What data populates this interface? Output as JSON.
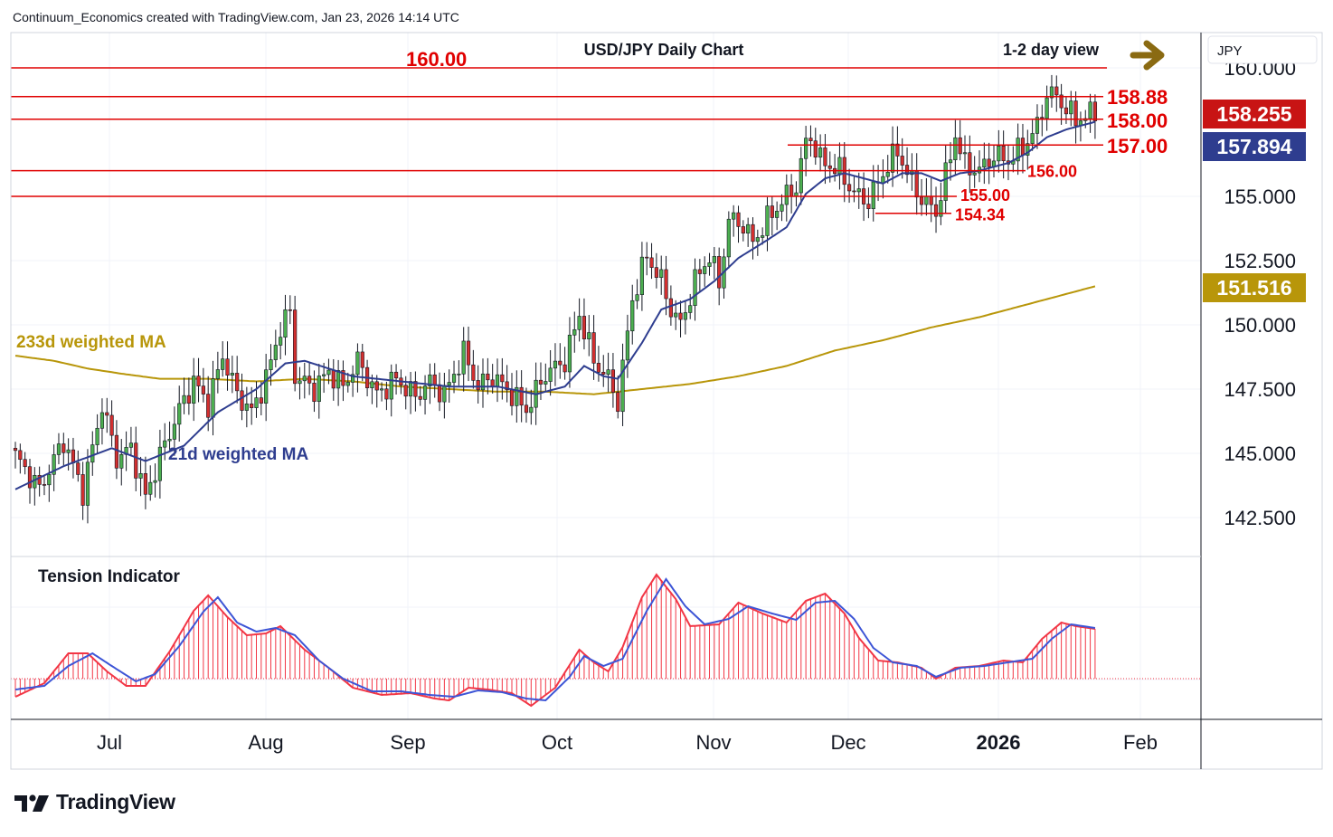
{
  "header": {
    "attribution": "Continuum_Economics created with TradingView.com, Jan 23, 2026 14:14 UTC"
  },
  "brand": {
    "name": "TradingView"
  },
  "chart_data": {
    "type": "candlestick",
    "title": "USD/JPY Daily Chart",
    "view_label": "1-2 day view",
    "view_arrow": "right-arrow-icon",
    "currency_label": "JPY",
    "ylim": [
      141.2,
      161.3
    ],
    "y_ticks": [
      "142.500",
      "145.000",
      "147.500",
      "150.000",
      "152.500",
      "155.000",
      "160.000"
    ],
    "x_labels": [
      {
        "label": "Jul",
        "bold": false
      },
      {
        "label": "Aug",
        "bold": false
      },
      {
        "label": "Sep",
        "bold": false
      },
      {
        "label": "Oct",
        "bold": false
      },
      {
        "label": "Nov",
        "bold": false
      },
      {
        "label": "Dec",
        "bold": false
      },
      {
        "label": "2026",
        "bold": true
      },
      {
        "label": "Feb",
        "bold": false
      }
    ],
    "colors": {
      "up": "#4caf50",
      "down": "#d32f2f",
      "level": "#e00000",
      "ma21": "#2e3d8f",
      "ma233": "#b8960a",
      "tension_bars": "#f23645",
      "tension_signal": "#3d55d6",
      "price_badge": "#c81414",
      "ma21_badge": "#2e3d8f",
      "ma233_badge": "#b8960a",
      "arrow": "#8a6a12"
    },
    "levels": [
      {
        "label": "160.00",
        "value": 160.0
      },
      {
        "label": "158.88",
        "value": 158.88
      },
      {
        "label": "158.00",
        "value": 158.0
      },
      {
        "label": "157.00",
        "value": 157.0
      },
      {
        "label": "156.00",
        "value": 156.0
      },
      {
        "label": "155.00",
        "value": 155.0
      },
      {
        "label": "154.34",
        "value": 154.34
      }
    ],
    "price_badges": [
      {
        "label": "158.255",
        "value": 158.255,
        "role": "last"
      },
      {
        "label": "157.894",
        "value": 157.894,
        "role": "ma21"
      },
      {
        "label": "151.516",
        "value": 151.516,
        "role": "ma233"
      }
    ],
    "ma_labels": {
      "ma233": "233d weighted MA",
      "ma21": "21d weighted MA"
    },
    "ohlc_close_path": [
      [
        0,
        144.9
      ],
      [
        5,
        143.6
      ],
      [
        10,
        145.5
      ],
      [
        14,
        143.5
      ],
      [
        18,
        146.9
      ],
      [
        21,
        144.8
      ],
      [
        24,
        145.2
      ],
      [
        27,
        143.3
      ],
      [
        30,
        144.9
      ],
      [
        34,
        146.7
      ],
      [
        37,
        147.8
      ],
      [
        40,
        146.9
      ],
      [
        43,
        148.8
      ],
      [
        46,
        147.3
      ],
      [
        49,
        146.6
      ],
      [
        52,
        147.9
      ],
      [
        55,
        149.9
      ],
      [
        57,
        150.5
      ],
      [
        58,
        148.0
      ],
      [
        62,
        147.5
      ],
      [
        65,
        148.2
      ],
      [
        68,
        147.6
      ],
      [
        71,
        148.6
      ],
      [
        75,
        147.3
      ],
      [
        79,
        147.9
      ],
      [
        83,
        147.2
      ],
      [
        86,
        147.8
      ],
      [
        89,
        147.3
      ],
      [
        93,
        148.9
      ],
      [
        96,
        147.6
      ],
      [
        99,
        148.0
      ],
      [
        103,
        147.3
      ],
      [
        106,
        146.7
      ],
      [
        110,
        148.1
      ],
      [
        114,
        148.6
      ],
      [
        117,
        150.4
      ],
      [
        120,
        148.6
      ],
      [
        123,
        147.9
      ],
      [
        125,
        147.0
      ],
      [
        128,
        151.0
      ],
      [
        131,
        152.7
      ],
      [
        134,
        151.7
      ],
      [
        136,
        150.6
      ],
      [
        138,
        150.0
      ],
      [
        141,
        151.7
      ],
      [
        144,
        152.7
      ],
      [
        146,
        151.6
      ],
      [
        148,
        154.1
      ],
      [
        151,
        153.9
      ],
      [
        153,
        153.2
      ],
      [
        156,
        154.1
      ],
      [
        159,
        154.8
      ],
      [
        162,
        155.4
      ],
      [
        164,
        157.1
      ],
      [
        165,
        157.3
      ],
      [
        167,
        156.4
      ],
      [
        169,
        156.2
      ],
      [
        171,
        156.0
      ],
      [
        174,
        155.1
      ],
      [
        177,
        154.8
      ],
      [
        180,
        155.9
      ],
      [
        183,
        156.8
      ],
      [
        185,
        155.9
      ],
      [
        188,
        154.9
      ],
      [
        191,
        154.4
      ],
      [
        193,
        155.8
      ],
      [
        195,
        157.4
      ],
      [
        197,
        156.2
      ],
      [
        200,
        156.0
      ],
      [
        203,
        156.6
      ],
      [
        206,
        156.4
      ],
      [
        209,
        156.9
      ],
      [
        212,
        157.7
      ],
      [
        214,
        159.0
      ],
      [
        216,
        158.9
      ],
      [
        218,
        158.4
      ],
      [
        220,
        158.0
      ],
      [
        222,
        158.1
      ],
      [
        224,
        158.3
      ]
    ],
    "ma21_path": [
      [
        0,
        143.6
      ],
      [
        10,
        144.5
      ],
      [
        20,
        145.2
      ],
      [
        27,
        144.7
      ],
      [
        35,
        145.3
      ],
      [
        42,
        146.6
      ],
      [
        50,
        147.5
      ],
      [
        56,
        148.5
      ],
      [
        60,
        148.6
      ],
      [
        70,
        148.0
      ],
      [
        80,
        147.8
      ],
      [
        90,
        147.6
      ],
      [
        100,
        147.6
      ],
      [
        108,
        147.3
      ],
      [
        114,
        147.6
      ],
      [
        118,
        148.4
      ],
      [
        122,
        148.0
      ],
      [
        125,
        147.9
      ],
      [
        130,
        149.3
      ],
      [
        134,
        150.6
      ],
      [
        140,
        151.0
      ],
      [
        145,
        151.7
      ],
      [
        150,
        152.6
      ],
      [
        156,
        153.3
      ],
      [
        160,
        153.8
      ],
      [
        164,
        155.1
      ],
      [
        168,
        155.7
      ],
      [
        172,
        155.9
      ],
      [
        176,
        155.7
      ],
      [
        180,
        155.5
      ],
      [
        184,
        155.9
      ],
      [
        188,
        155.9
      ],
      [
        192,
        155.6
      ],
      [
        196,
        155.9
      ],
      [
        200,
        156.0
      ],
      [
        206,
        156.3
      ],
      [
        210,
        156.7
      ],
      [
        214,
        157.3
      ],
      [
        218,
        157.6
      ],
      [
        224,
        157.9
      ]
    ],
    "ma233_path": [
      [
        0,
        148.8
      ],
      [
        8,
        148.6
      ],
      [
        15,
        148.3
      ],
      [
        22,
        148.1
      ],
      [
        30,
        147.9
      ],
      [
        40,
        147.9
      ],
      [
        50,
        147.8
      ],
      [
        60,
        147.9
      ],
      [
        70,
        147.8
      ],
      [
        80,
        147.6
      ],
      [
        90,
        147.5
      ],
      [
        100,
        147.4
      ],
      [
        110,
        147.4
      ],
      [
        120,
        147.3
      ],
      [
        130,
        147.5
      ],
      [
        140,
        147.7
      ],
      [
        150,
        148.0
      ],
      [
        160,
        148.4
      ],
      [
        170,
        149.0
      ],
      [
        180,
        149.4
      ],
      [
        190,
        149.9
      ],
      [
        200,
        150.3
      ],
      [
        210,
        150.8
      ],
      [
        224,
        151.5
      ]
    ],
    "tension_indicator": {
      "title": "Tension Indicator",
      "ylim": [
        -0.6,
        1.2
      ],
      "bars_path": [
        [
          0,
          -0.2
        ],
        [
          6,
          -0.05
        ],
        [
          11,
          0.28
        ],
        [
          15,
          0.28
        ],
        [
          19,
          0.08
        ],
        [
          23,
          -0.08
        ],
        [
          27,
          -0.08
        ],
        [
          32,
          0.3
        ],
        [
          37,
          0.75
        ],
        [
          40,
          0.92
        ],
        [
          44,
          0.68
        ],
        [
          48,
          0.48
        ],
        [
          52,
          0.5
        ],
        [
          55,
          0.58
        ],
        [
          60,
          0.32
        ],
        [
          65,
          0.12
        ],
        [
          70,
          -0.1
        ],
        [
          76,
          -0.18
        ],
        [
          82,
          -0.16
        ],
        [
          87,
          -0.22
        ],
        [
          90,
          -0.24
        ],
        [
          94,
          -0.1
        ],
        [
          98,
          -0.12
        ],
        [
          103,
          -0.16
        ],
        [
          107,
          -0.3
        ],
        [
          112,
          -0.1
        ],
        [
          117,
          0.32
        ],
        [
          120,
          0.18
        ],
        [
          123,
          0.08
        ],
        [
          126,
          0.35
        ],
        [
          130,
          0.9
        ],
        [
          133,
          1.15
        ],
        [
          137,
          0.88
        ],
        [
          140,
          0.58
        ],
        [
          146,
          0.6
        ],
        [
          150,
          0.84
        ],
        [
          155,
          0.72
        ],
        [
          160,
          0.62
        ],
        [
          164,
          0.86
        ],
        [
          168,
          0.94
        ],
        [
          172,
          0.72
        ],
        [
          175,
          0.45
        ],
        [
          179,
          0.2
        ],
        [
          183,
          0.18
        ],
        [
          188,
          0.12
        ],
        [
          191,
          0.0
        ],
        [
          195,
          0.12
        ],
        [
          200,
          0.14
        ],
        [
          205,
          0.2
        ],
        [
          209,
          0.18
        ],
        [
          213,
          0.44
        ],
        [
          217,
          0.62
        ],
        [
          220,
          0.58
        ],
        [
          224,
          0.55
        ]
      ],
      "signal_path": [
        [
          0,
          -0.12
        ],
        [
          6,
          -0.08
        ],
        [
          11,
          0.14
        ],
        [
          16,
          0.28
        ],
        [
          20,
          0.14
        ],
        [
          25,
          -0.03
        ],
        [
          29,
          0.05
        ],
        [
          34,
          0.36
        ],
        [
          39,
          0.74
        ],
        [
          42,
          0.9
        ],
        [
          46,
          0.62
        ],
        [
          50,
          0.52
        ],
        [
          54,
          0.56
        ],
        [
          58,
          0.48
        ],
        [
          63,
          0.2
        ],
        [
          68,
          0.0
        ],
        [
          74,
          -0.14
        ],
        [
          80,
          -0.14
        ],
        [
          86,
          -0.18
        ],
        [
          91,
          -0.2
        ],
        [
          96,
          -0.13
        ],
        [
          101,
          -0.15
        ],
        [
          106,
          -0.22
        ],
        [
          110,
          -0.24
        ],
        [
          115,
          0.02
        ],
        [
          118,
          0.25
        ],
        [
          122,
          0.14
        ],
        [
          126,
          0.22
        ],
        [
          131,
          0.75
        ],
        [
          135,
          1.1
        ],
        [
          139,
          0.8
        ],
        [
          143,
          0.6
        ],
        [
          148,
          0.66
        ],
        [
          152,
          0.8
        ],
        [
          157,
          0.72
        ],
        [
          162,
          0.65
        ],
        [
          166,
          0.84
        ],
        [
          170,
          0.86
        ],
        [
          174,
          0.66
        ],
        [
          178,
          0.34
        ],
        [
          182,
          0.18
        ],
        [
          187,
          0.14
        ],
        [
          191,
          0.02
        ],
        [
          196,
          0.12
        ],
        [
          201,
          0.14
        ],
        [
          206,
          0.18
        ],
        [
          211,
          0.22
        ],
        [
          215,
          0.44
        ],
        [
          219,
          0.6
        ],
        [
          224,
          0.56
        ]
      ]
    }
  }
}
